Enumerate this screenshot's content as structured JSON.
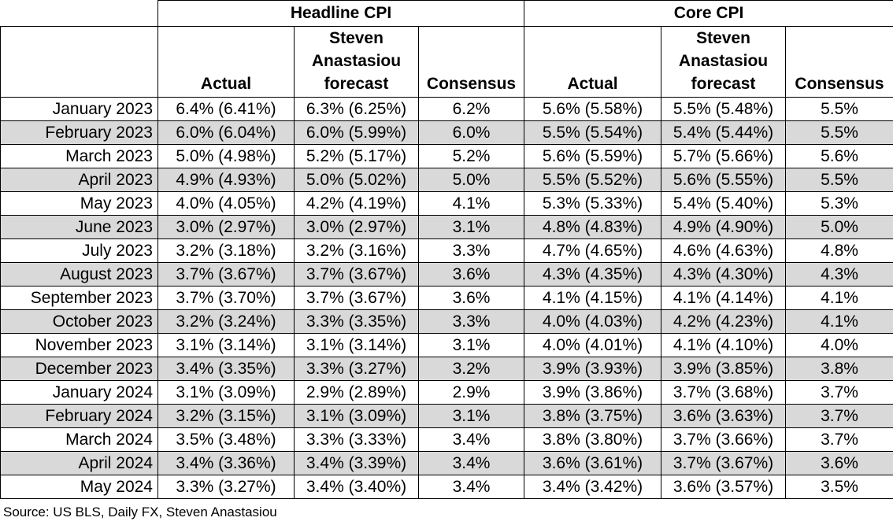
{
  "table": {
    "groups": [
      "Headline CPI",
      "Core CPI"
    ],
    "subheaders": [
      "Actual",
      "Steven Anastasiou forecast",
      "Consensus",
      "Actual",
      "Steven Anastasiou forecast",
      "Consensus"
    ],
    "rows": [
      [
        "January 2023",
        "6.4% (6.41%)",
        "6.3% (6.25%)",
        "6.2%",
        "5.6% (5.58%)",
        "5.5% (5.48%)",
        "5.5%"
      ],
      [
        "February 2023",
        "6.0% (6.04%)",
        "6.0% (5.99%)",
        "6.0%",
        "5.5% (5.54%)",
        "5.4% (5.44%)",
        "5.5%"
      ],
      [
        "March 2023",
        "5.0% (4.98%)",
        "5.2% (5.17%)",
        "5.2%",
        "5.6% (5.59%)",
        "5.7% (5.66%)",
        "5.6%"
      ],
      [
        "April 2023",
        "4.9% (4.93%)",
        "5.0% (5.02%)",
        "5.0%",
        "5.5% (5.52%)",
        "5.6% (5.55%)",
        "5.5%"
      ],
      [
        "May 2023",
        "4.0% (4.05%)",
        "4.2% (4.19%)",
        "4.1%",
        "5.3% (5.33%)",
        "5.4% (5.40%)",
        "5.3%"
      ],
      [
        "June 2023",
        "3.0% (2.97%)",
        "3.0% (2.97%)",
        "3.1%",
        "4.8% (4.83%)",
        "4.9% (4.90%)",
        "5.0%"
      ],
      [
        "July 2023",
        "3.2% (3.18%)",
        "3.2% (3.16%)",
        "3.3%",
        "4.7% (4.65%)",
        "4.6% (4.63%)",
        "4.8%"
      ],
      [
        "August 2023",
        "3.7% (3.67%)",
        "3.7% (3.67%)",
        "3.6%",
        "4.3% (4.35%)",
        "4.3% (4.30%)",
        "4.3%"
      ],
      [
        "September 2023",
        "3.7% (3.70%)",
        "3.7% (3.67%)",
        "3.6%",
        "4.1% (4.15%)",
        "4.1% (4.14%)",
        "4.1%"
      ],
      [
        "October 2023",
        "3.2% (3.24%)",
        "3.3% (3.35%)",
        "3.3%",
        "4.0% (4.03%)",
        "4.2% (4.23%)",
        "4.1%"
      ],
      [
        "November 2023",
        "3.1% (3.14%)",
        "3.1% (3.14%)",
        "3.1%",
        "4.0% (4.01%)",
        "4.1% (4.10%)",
        "4.0%"
      ],
      [
        "December 2023",
        "3.4% (3.35%)",
        "3.3% (3.27%)",
        "3.2%",
        "3.9% (3.93%)",
        "3.9% (3.85%)",
        "3.8%"
      ],
      [
        "January 2024",
        "3.1% (3.09%)",
        "2.9% (2.89%)",
        "2.9%",
        "3.9% (3.86%)",
        "3.7% (3.68%)",
        "3.7%"
      ],
      [
        "February 2024",
        "3.2% (3.15%)",
        "3.1% (3.09%)",
        "3.1%",
        "3.8% (3.75%)",
        "3.6% (3.63%)",
        "3.7%"
      ],
      [
        "March 2024",
        "3.5% (3.48%)",
        "3.3% (3.33%)",
        "3.4%",
        "3.8% (3.80%)",
        "3.7% (3.66%)",
        "3.7%"
      ],
      [
        "April 2024",
        "3.4% (3.36%)",
        "3.4% (3.39%)",
        "3.4%",
        "3.6% (3.61%)",
        "3.7% (3.67%)",
        "3.6%"
      ],
      [
        "May 2024",
        "3.3% (3.27%)",
        "3.4% (3.40%)",
        "3.4%",
        "3.4% (3.42%)",
        "3.6% (3.57%)",
        "3.5%"
      ]
    ]
  },
  "source": "Source: US BLS, Daily FX, Steven Anastasiou"
}
